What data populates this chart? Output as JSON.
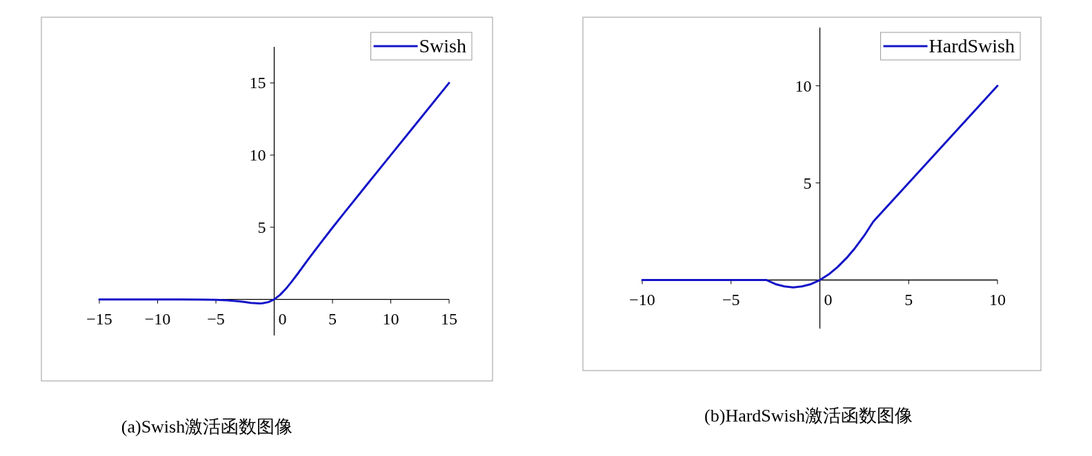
{
  "chart_data": [
    {
      "type": "line",
      "title": "(a)Swish激活函数图像",
      "xlim": [
        -15,
        15
      ],
      "ylim": [
        -2.5,
        17.5
      ],
      "xticks": [
        -15,
        -10,
        -5,
        0,
        5,
        10,
        15
      ],
      "yticks": [
        5,
        10,
        15
      ],
      "legend": "top right",
      "series": [
        {
          "name": "Swish",
          "color": "#1414c8",
          "x": [
            -15,
            -12,
            -10,
            -8,
            -6,
            -5,
            -4,
            -3,
            -2.5,
            -2,
            -1.5,
            -1.28,
            -1,
            -0.5,
            0,
            0.5,
            1,
            1.5,
            2,
            3,
            4,
            5,
            6,
            8,
            10,
            12,
            15
          ],
          "values": [
            0,
            0,
            0,
            -0.003,
            -0.015,
            -0.03,
            -0.07,
            -0.14,
            -0.19,
            -0.24,
            -0.27,
            -0.28,
            -0.27,
            -0.19,
            0,
            0.31,
            0.73,
            1.23,
            1.76,
            2.86,
            3.93,
            4.97,
            5.99,
            8,
            10,
            12,
            15
          ]
        }
      ]
    },
    {
      "type": "line",
      "title": "(b)HardSwish激活函数图像",
      "xlim": [
        -10,
        10
      ],
      "ylim": [
        -2.5,
        13
      ],
      "xticks": [
        -10,
        -5,
        0,
        5,
        10
      ],
      "yticks": [
        5,
        10
      ],
      "legend": "top right",
      "series": [
        {
          "name": "HardSwish",
          "color": "#1414c8",
          "x": [
            -10,
            -3,
            -2.5,
            -2,
            -1.5,
            -1,
            -0.5,
            0,
            0.5,
            1,
            1.5,
            2,
            2.5,
            3,
            10
          ],
          "values": [
            0,
            0,
            -0.21,
            -0.33,
            -0.38,
            -0.33,
            -0.21,
            0,
            0.29,
            0.67,
            1.13,
            1.67,
            2.29,
            3,
            10
          ]
        }
      ]
    }
  ]
}
